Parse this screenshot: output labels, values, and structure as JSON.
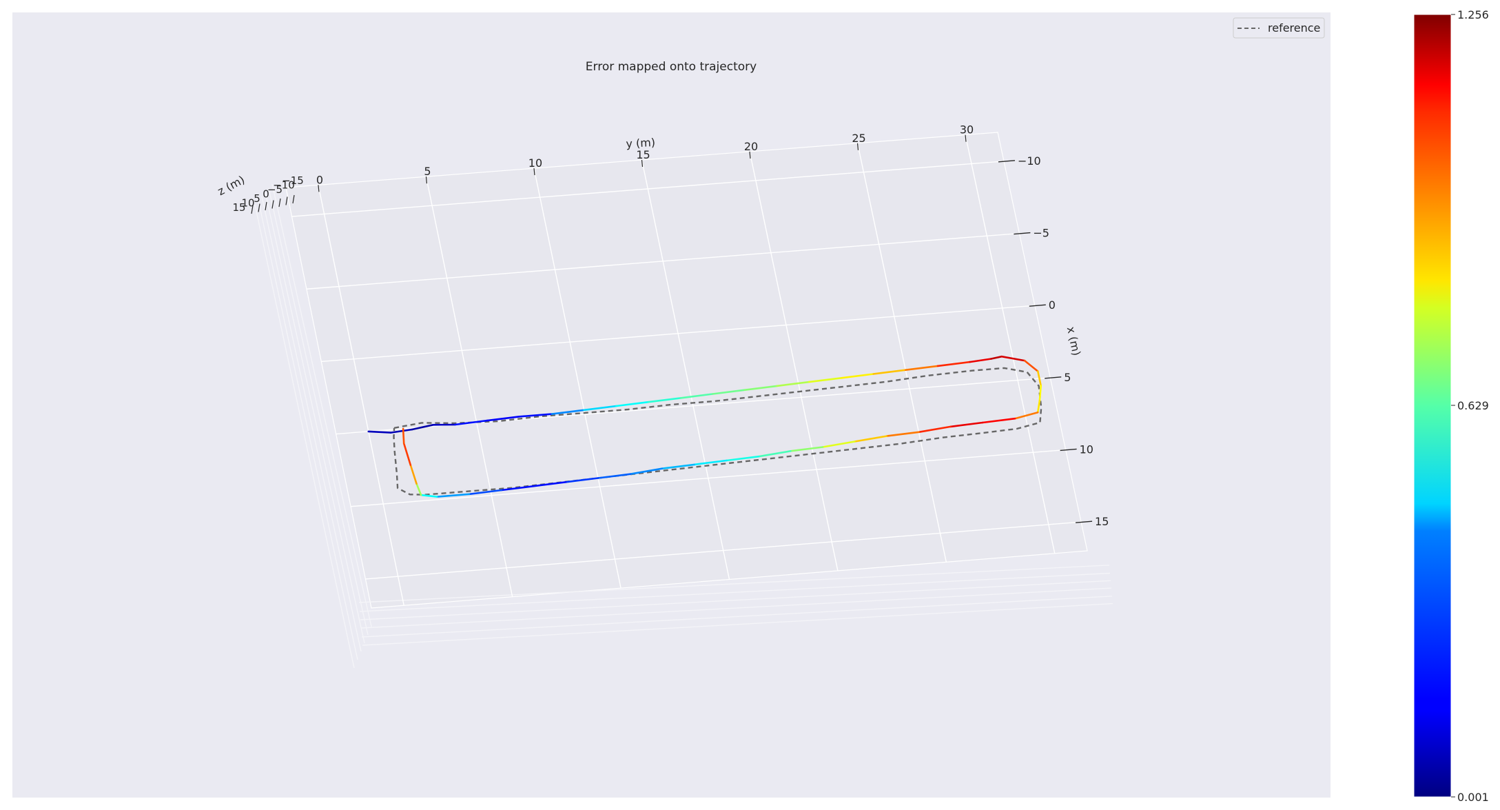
{
  "chart_data": {
    "type": "line",
    "projection": "3d",
    "title": "Error mapped onto trajectory",
    "xlabel": "x (m)",
    "ylabel": "y (m)",
    "zlabel": "z (m)",
    "x_ticks": [
      -10,
      -5,
      0,
      5,
      10,
      15
    ],
    "y_ticks": [
      0,
      5,
      10,
      15,
      20,
      25,
      30
    ],
    "z_ticks": [
      15,
      10,
      5,
      0,
      -5,
      -10,
      -15
    ],
    "xlim": [
      -12,
      17
    ],
    "ylim": [
      -1.5,
      31.5
    ],
    "zlim": [
      -16,
      16
    ],
    "grid": true,
    "legend": {
      "position": "top-right",
      "entries": [
        {
          "label": "reference",
          "style": "dashed",
          "color": "#666666"
        }
      ]
    },
    "colorbar": {
      "colormap": "jet",
      "min": 0.001,
      "mid": 0.629,
      "max": 1.256,
      "tick_labels": [
        "1.256",
        "0.629",
        "0.001"
      ]
    },
    "series": [
      {
        "name": "reference",
        "color": "#666666",
        "style": "dashed",
        "points": [
          [
            4.9,
            1.2,
            0
          ],
          [
            4.7,
            2.5,
            0
          ],
          [
            4.9,
            4.0,
            0
          ],
          [
            5.0,
            6.0,
            0
          ],
          [
            4.9,
            8.0,
            0
          ],
          [
            4.9,
            10.0,
            0
          ],
          [
            4.9,
            12.0,
            0
          ],
          [
            4.8,
            14.0,
            0
          ],
          [
            4.8,
            16.0,
            0
          ],
          [
            4.7,
            18.0,
            0
          ],
          [
            4.6,
            20.0,
            0
          ],
          [
            4.5,
            22.0,
            0
          ],
          [
            4.4,
            24.0,
            0
          ],
          [
            4.2,
            26.0,
            0
          ],
          [
            4.1,
            28.0,
            0
          ],
          [
            4.1,
            29.5,
            0
          ],
          [
            4.5,
            30.5,
            0
          ],
          [
            5.5,
            30.9,
            0
          ],
          [
            7.0,
            30.8,
            0
          ],
          [
            8.0,
            30.6,
            0
          ],
          [
            8.3,
            29.5,
            0
          ],
          [
            8.4,
            28.0,
            0
          ],
          [
            8.5,
            26.0,
            0
          ],
          [
            8.7,
            24.0,
            0
          ],
          [
            8.8,
            22.0,
            0
          ],
          [
            8.9,
            20.0,
            0
          ],
          [
            9.0,
            18.0,
            0
          ],
          [
            9.1,
            16.0,
            0
          ],
          [
            9.2,
            14.0,
            0
          ],
          [
            9.3,
            12.0,
            0
          ],
          [
            9.4,
            10.0,
            0
          ],
          [
            9.5,
            8.0,
            0
          ],
          [
            9.6,
            6.0,
            0
          ],
          [
            9.6,
            4.0,
            0
          ],
          [
            9.6,
            2.0,
            0
          ],
          [
            9.5,
            1.3,
            0
          ],
          [
            9.0,
            0.8,
            0
          ],
          [
            8.0,
            0.9,
            0
          ],
          [
            6.5,
            1.0,
            0
          ],
          [
            5.5,
            1.1,
            0
          ],
          [
            4.9,
            1.2,
            0
          ]
        ]
      },
      {
        "name": "",
        "colormap": "jet",
        "points": [
          [
            5.0,
            0.0,
            0,
            0.1
          ],
          [
            5.2,
            1.0,
            0,
            0.05
          ],
          [
            5.1,
            2.0,
            0,
            0.08
          ],
          [
            4.9,
            3.0,
            0,
            0.02
          ],
          [
            5.0,
            4.0,
            0,
            0.15
          ],
          [
            4.9,
            5.5,
            0,
            0.2
          ],
          [
            4.8,
            7.0,
            0,
            0.1
          ],
          [
            4.8,
            8.5,
            0,
            0.25
          ],
          [
            4.7,
            10.0,
            0,
            0.4
          ],
          [
            4.6,
            11.5,
            0,
            0.45
          ],
          [
            4.5,
            13.0,
            0,
            0.5
          ],
          [
            4.4,
            14.5,
            0,
            0.55
          ],
          [
            4.3,
            16.0,
            0,
            0.6
          ],
          [
            4.2,
            17.5,
            0,
            0.62
          ],
          [
            4.1,
            19.0,
            0,
            0.66
          ],
          [
            4.0,
            20.5,
            0,
            0.72
          ],
          [
            3.9,
            22.0,
            0,
            0.78
          ],
          [
            3.8,
            23.5,
            0,
            0.82
          ],
          [
            3.7,
            25.0,
            0,
            0.9
          ],
          [
            3.6,
            26.5,
            0,
            1.0
          ],
          [
            3.5,
            28.0,
            0,
            1.1
          ],
          [
            3.4,
            29.0,
            0,
            1.15
          ],
          [
            3.3,
            29.5,
            0,
            1.2
          ],
          [
            3.7,
            30.5,
            0,
            1.1
          ],
          [
            4.5,
            31.0,
            0,
            0.9
          ],
          [
            5.5,
            31.0,
            0,
            0.8
          ],
          [
            6.5,
            30.8,
            0,
            0.78
          ],
          [
            7.3,
            30.6,
            0,
            0.85
          ],
          [
            7.6,
            29.5,
            0,
            1.05
          ],
          [
            7.7,
            28.0,
            0,
            1.15
          ],
          [
            7.8,
            26.5,
            0,
            1.1
          ],
          [
            8.0,
            25.0,
            0,
            1.0
          ],
          [
            8.1,
            23.5,
            0,
            0.9
          ],
          [
            8.3,
            22.0,
            0,
            0.8
          ],
          [
            8.5,
            20.5,
            0,
            0.7
          ],
          [
            8.6,
            19.0,
            0,
            0.6
          ],
          [
            8.8,
            17.5,
            0,
            0.52
          ],
          [
            8.9,
            16.0,
            0,
            0.48
          ],
          [
            9.0,
            14.5,
            0,
            0.42
          ],
          [
            9.1,
            13.0,
            0,
            0.35
          ],
          [
            9.3,
            11.5,
            0,
            0.3
          ],
          [
            9.4,
            10.0,
            0,
            0.25
          ],
          [
            9.5,
            8.5,
            0,
            0.2
          ],
          [
            9.6,
            7.0,
            0,
            0.15
          ],
          [
            9.7,
            5.5,
            0,
            0.2
          ],
          [
            9.8,
            4.0,
            0,
            0.3
          ],
          [
            9.8,
            2.5,
            0,
            0.4
          ],
          [
            9.6,
            1.8,
            0,
            0.55
          ],
          [
            8.8,
            1.7,
            0,
            0.8
          ],
          [
            7.5,
            1.6,
            0,
            1.0
          ],
          [
            6.0,
            1.5,
            0,
            1.05
          ],
          [
            5.0,
            1.6,
            0,
            0.95
          ]
        ]
      }
    ]
  }
}
